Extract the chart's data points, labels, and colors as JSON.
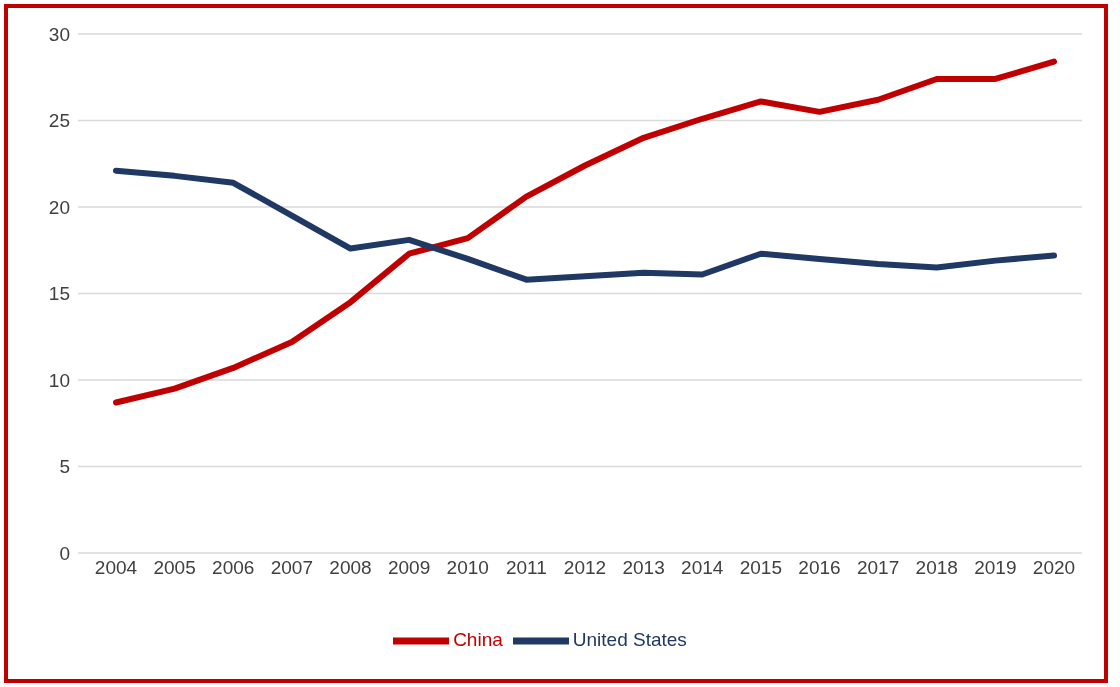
{
  "chart_data": {
    "type": "line",
    "categories": [
      "2004",
      "2005",
      "2006",
      "2007",
      "2008",
      "2009",
      "2010",
      "2011",
      "2012",
      "2013",
      "2014",
      "2015",
      "2016",
      "2017",
      "2018",
      "2019",
      "2020"
    ],
    "series": [
      {
        "name": "China",
        "color": "#c00000",
        "values": [
          8.7,
          9.5,
          10.7,
          12.2,
          14.5,
          17.3,
          18.2,
          20.6,
          22.4,
          24.0,
          25.1,
          26.1,
          25.5,
          26.2,
          27.4,
          27.4,
          28.4
        ]
      },
      {
        "name": "United States",
        "color": "#1f3864",
        "values": [
          22.1,
          21.8,
          21.4,
          19.5,
          17.6,
          18.1,
          17.0,
          15.8,
          16.0,
          16.2,
          16.1,
          17.3,
          17.0,
          16.7,
          16.5,
          16.9,
          17.2
        ]
      }
    ],
    "ylim": [
      0,
      30
    ],
    "yticks": [
      0,
      5,
      10,
      15,
      20,
      25,
      30
    ],
    "grid": "y",
    "legend": "bottom",
    "marker": "none",
    "line_style": "solid"
  }
}
